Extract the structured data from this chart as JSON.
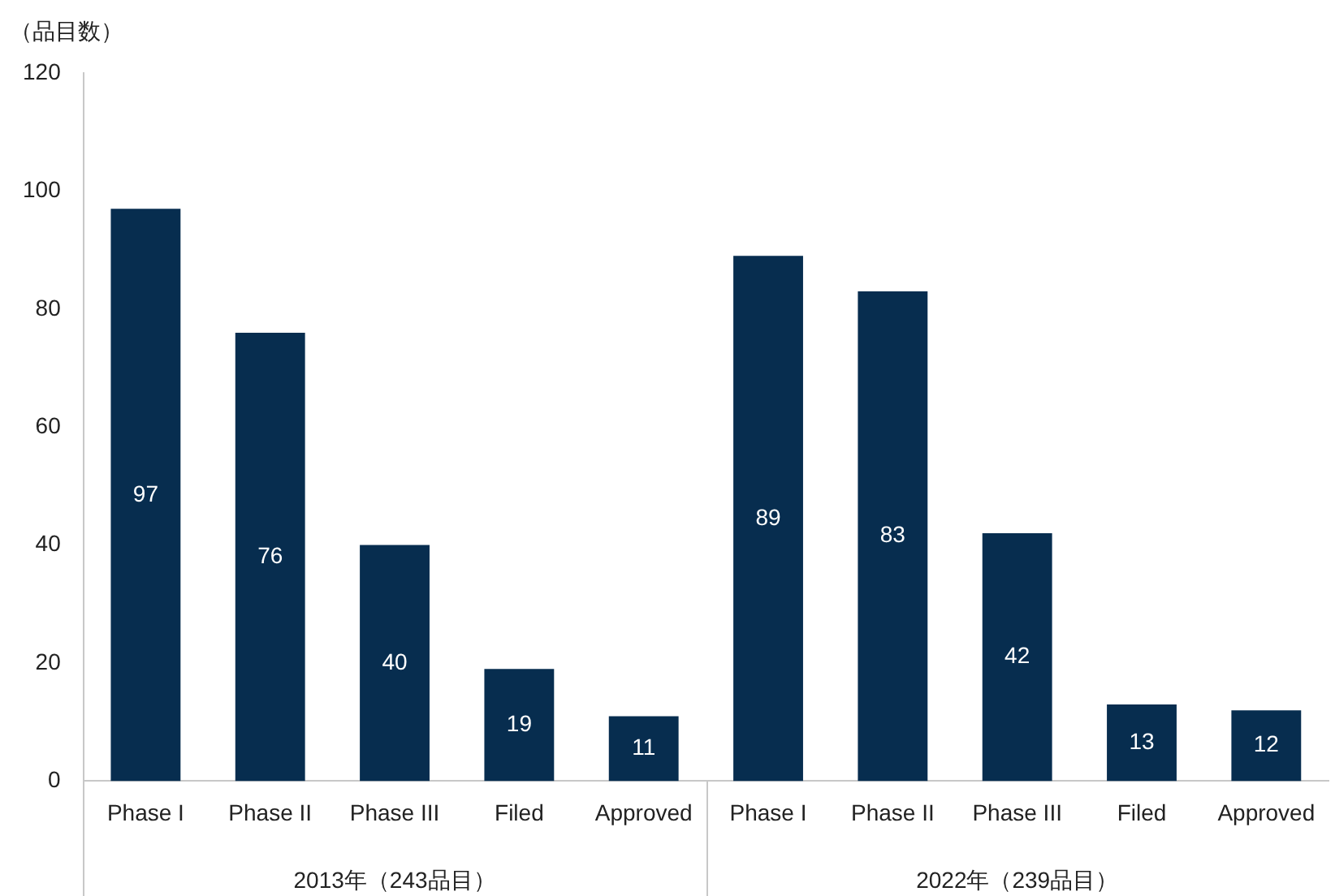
{
  "chart_data": {
    "type": "bar",
    "ylabel": "（品目数）",
    "categories": [
      "Phase I",
      "Phase II",
      "Phase III",
      "Filed",
      "Approved",
      "Phase I",
      "Phase II",
      "Phase III",
      "Filed",
      "Approved"
    ],
    "values": [
      97,
      76,
      40,
      19,
      11,
      89,
      83,
      42,
      13,
      12
    ],
    "color": "#072d4f",
    "ylim": [
      0,
      120
    ],
    "yticks": [
      0,
      20,
      40,
      60,
      80,
      100,
      120
    ],
    "grid": false,
    "legend": false,
    "data_labels": true,
    "annotations": [
      "2013年（243品目）",
      "2022年（239品目）"
    ]
  }
}
